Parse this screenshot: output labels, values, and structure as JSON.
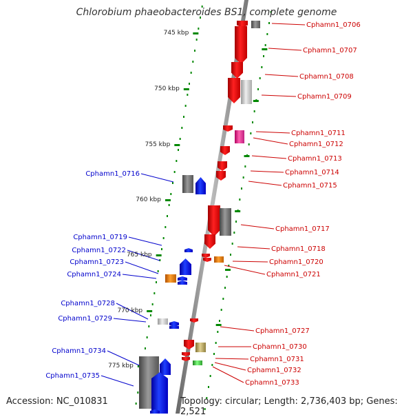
{
  "title": "Chlorobium phaeobacteroides BS1, complete genome",
  "accession": "Accession: NC_010831",
  "topology": "Topology: circular; Length: 2,736,403 bp; Genes: 2,521",
  "colors": {
    "forward": "#e00000",
    "reverse": "#0000e0",
    "forward_label": "#cc0000",
    "reverse_label": "#0000cc",
    "backbone": "#888888",
    "ticks": "#008800",
    "other_gray": "#777777",
    "light_gray": "#bbbbbb",
    "magenta": "#e0409a",
    "orange": "#e07800",
    "khaki": "#b0a060",
    "green": "#40c040"
  },
  "scale_labels": [
    "745 kbp",
    "750 kbp",
    "755 kbp",
    "760 kbp",
    "765 kbp",
    "770 kbp",
    "775 kbp"
  ],
  "genes": [
    {
      "name": "Cphamn1_0706",
      "strand": "forward"
    },
    {
      "name": "Cphamn1_0707",
      "strand": "forward"
    },
    {
      "name": "Cphamn1_0708",
      "strand": "forward"
    },
    {
      "name": "Cphamn1_0709",
      "strand": "forward"
    },
    {
      "name": "Cphamn1_0711",
      "strand": "forward"
    },
    {
      "name": "Cphamn1_0712",
      "strand": "forward"
    },
    {
      "name": "Cphamn1_0713",
      "strand": "forward"
    },
    {
      "name": "Cphamn1_0714",
      "strand": "forward"
    },
    {
      "name": "Cphamn1_0715",
      "strand": "forward"
    },
    {
      "name": "Cphamn1_0716",
      "strand": "reverse"
    },
    {
      "name": "Cphamn1_0717",
      "strand": "forward"
    },
    {
      "name": "Cphamn1_0718",
      "strand": "forward"
    },
    {
      "name": "Cphamn1_0719",
      "strand": "reverse"
    },
    {
      "name": "Cphamn1_0720",
      "strand": "forward"
    },
    {
      "name": "Cphamn1_0721",
      "strand": "forward"
    },
    {
      "name": "Cphamn1_0722",
      "strand": "reverse"
    },
    {
      "name": "Cphamn1_0723",
      "strand": "reverse"
    },
    {
      "name": "Cphamn1_0724",
      "strand": "reverse"
    },
    {
      "name": "Cphamn1_0727",
      "strand": "forward"
    },
    {
      "name": "Cphamn1_0728",
      "strand": "reverse"
    },
    {
      "name": "Cphamn1_0729",
      "strand": "reverse"
    },
    {
      "name": "Cphamn1_0730",
      "strand": "forward"
    },
    {
      "name": "Cphamn1_0731",
      "strand": "forward"
    },
    {
      "name": "Cphamn1_0732",
      "strand": "forward"
    },
    {
      "name": "Cphamn1_0733",
      "strand": "forward"
    },
    {
      "name": "Cphamn1_0734",
      "strand": "reverse"
    },
    {
      "name": "Cphamn1_0735",
      "strand": "reverse"
    }
  ]
}
